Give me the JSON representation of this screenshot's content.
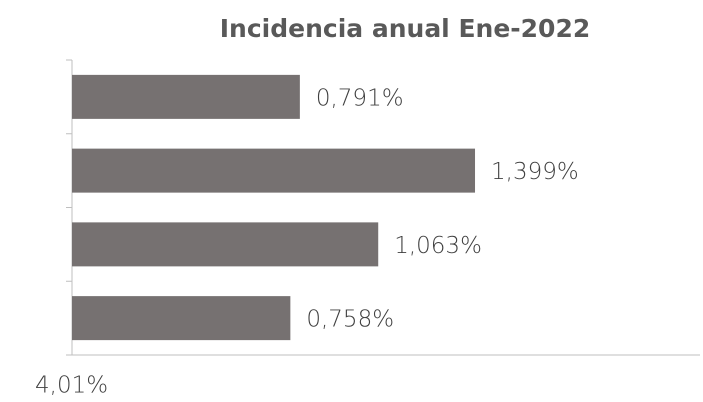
{
  "chart_data": {
    "type": "bar",
    "orientation": "horizontal",
    "title": "Incidencia anual Ene-2022",
    "categories": [
      null,
      null,
      null,
      null
    ],
    "values": [
      0.791,
      1.399,
      1.063,
      0.758
    ],
    "value_labels": [
      "0,791%",
      "1,399%",
      "1,063%",
      "0,758%"
    ],
    "color": "#767171",
    "xlim": [
      0,
      2.18
    ],
    "annotation": "4,01%"
  }
}
